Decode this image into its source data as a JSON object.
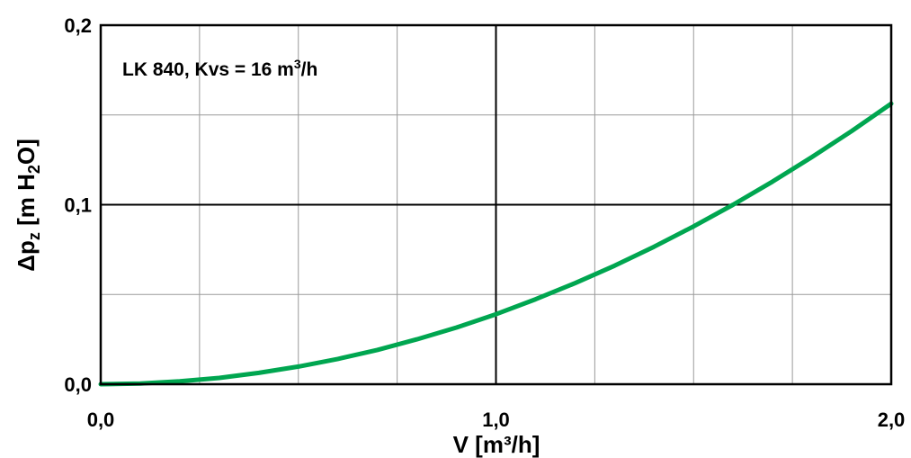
{
  "chart_data": {
    "type": "line",
    "title": "",
    "annotation": {
      "text": "LK 840, Kvs = 16 m",
      "sup": "3",
      "suffix": "/h"
    },
    "xlabel": {
      "text": "V [m³/h]"
    },
    "ylabel": {
      "prefix": "Δp",
      "sub1": "z",
      "middle": " [m H",
      "sub2": "2",
      "suffix": "O]"
    },
    "xlim": [
      0,
      2
    ],
    "ylim": [
      0,
      0.2
    ],
    "x_ticks": [
      {
        "value": 0,
        "label": "0,0"
      },
      {
        "value": 1,
        "label": "1,0"
      },
      {
        "value": 2,
        "label": "2,0"
      }
    ],
    "y_ticks": [
      {
        "value": 0,
        "label": "0,0"
      },
      {
        "value": 0.1,
        "label": "0,1"
      },
      {
        "value": 0.2,
        "label": "0,2"
      }
    ],
    "x_major_grid": [
      1
    ],
    "x_minor_grid": [
      0.25,
      0.5,
      0.75,
      1.25,
      1.5,
      1.75
    ],
    "y_major_grid": [
      0.1
    ],
    "y_minor_grid": [
      0.05,
      0.15
    ],
    "grid": true,
    "series": [
      {
        "color": "#00a650",
        "x": [
          0,
          0.1,
          0.2,
          0.3,
          0.4,
          0.5,
          0.6,
          0.7,
          0.8,
          0.9,
          1.0,
          1.1,
          1.2,
          1.3,
          1.4,
          1.5,
          1.6,
          1.7,
          1.8,
          1.9,
          2.0
        ],
        "y": [
          0,
          0.0004,
          0.0016,
          0.0035,
          0.0063,
          0.0098,
          0.0141,
          0.0191,
          0.025,
          0.0316,
          0.039,
          0.0473,
          0.0563,
          0.066,
          0.0766,
          0.0879,
          0.1,
          0.1129,
          0.1266,
          0.141,
          0.1563
        ]
      }
    ]
  }
}
